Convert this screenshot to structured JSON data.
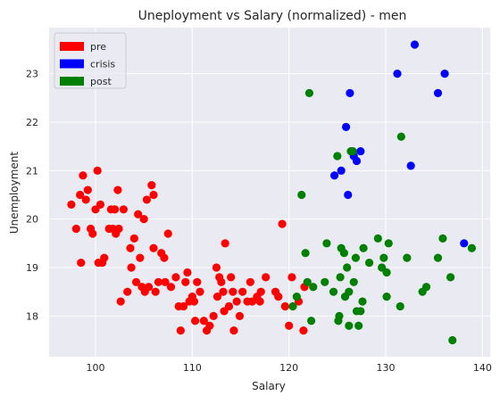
{
  "chart_data": {
    "type": "scatter",
    "title": "Uneployment vs Salary (normalized) - men",
    "xlabel": "Salary",
    "ylabel": "Unemployment",
    "xlim": [
      95.2,
      140.8
    ],
    "ylim": [
      17.16,
      23.95
    ],
    "xticks": [
      100,
      110,
      120,
      130,
      140
    ],
    "yticks": [
      18,
      19,
      20,
      21,
      22,
      23
    ],
    "grid": true,
    "legend_position": "top-left",
    "colors": {
      "background": "#eaeaf2",
      "grid": "#ffffff"
    },
    "series": [
      {
        "name": "pre",
        "color": "#ff0000",
        "points": [
          [
            97.5,
            20.3
          ],
          [
            98.0,
            19.8
          ],
          [
            98.4,
            20.5
          ],
          [
            98.5,
            19.1
          ],
          [
            98.7,
            20.9
          ],
          [
            99.0,
            20.4
          ],
          [
            99.2,
            20.6
          ],
          [
            99.5,
            19.8
          ],
          [
            99.7,
            19.7
          ],
          [
            100.0,
            20.2
          ],
          [
            100.2,
            21.0
          ],
          [
            100.3,
            19.1
          ],
          [
            100.5,
            20.3
          ],
          [
            100.7,
            19.1
          ],
          [
            100.9,
            19.2
          ],
          [
            101.4,
            19.8
          ],
          [
            101.6,
            20.2
          ],
          [
            101.8,
            19.8
          ],
          [
            102.0,
            20.2
          ],
          [
            102.1,
            19.7
          ],
          [
            102.3,
            20.6
          ],
          [
            102.4,
            19.8
          ],
          [
            102.6,
            18.3
          ],
          [
            102.9,
            20.2
          ],
          [
            103.3,
            18.5
          ],
          [
            103.6,
            19.4
          ],
          [
            103.7,
            19.0
          ],
          [
            104.0,
            19.6
          ],
          [
            104.2,
            18.7
          ],
          [
            104.4,
            20.1
          ],
          [
            104.6,
            19.2
          ],
          [
            104.8,
            18.6
          ],
          [
            105.0,
            20.0
          ],
          [
            105.1,
            18.5
          ],
          [
            105.3,
            20.4
          ],
          [
            105.5,
            18.6
          ],
          [
            105.8,
            20.7
          ],
          [
            106.0,
            20.5
          ],
          [
            106.0,
            19.4
          ],
          [
            106.2,
            18.5
          ],
          [
            106.5,
            18.7
          ],
          [
            106.8,
            19.3
          ],
          [
            107.1,
            19.2
          ],
          [
            107.2,
            18.7
          ],
          [
            107.5,
            19.7
          ],
          [
            107.8,
            18.6
          ],
          [
            108.3,
            18.8
          ],
          [
            108.6,
            18.2
          ],
          [
            108.8,
            17.7
          ],
          [
            109.1,
            18.2
          ],
          [
            109.3,
            18.7
          ],
          [
            109.5,
            18.9
          ],
          [
            109.7,
            18.3
          ],
          [
            110.0,
            18.4
          ],
          [
            110.2,
            18.3
          ],
          [
            110.3,
            17.9
          ],
          [
            110.5,
            18.7
          ],
          [
            110.8,
            18.5
          ],
          [
            111.2,
            17.9
          ],
          [
            111.5,
            17.7
          ],
          [
            111.8,
            17.8
          ],
          [
            112.2,
            18.0
          ],
          [
            112.5,
            19.0
          ],
          [
            112.6,
            18.4
          ],
          [
            112.8,
            18.8
          ],
          [
            113.0,
            18.7
          ],
          [
            113.2,
            18.5
          ],
          [
            113.3,
            18.1
          ],
          [
            113.4,
            19.5
          ],
          [
            113.8,
            18.2
          ],
          [
            114.0,
            18.8
          ],
          [
            114.2,
            18.5
          ],
          [
            114.3,
            17.7
          ],
          [
            114.6,
            18.3
          ],
          [
            114.9,
            18.0
          ],
          [
            115.2,
            18.5
          ],
          [
            115.7,
            18.3
          ],
          [
            116.0,
            18.7
          ],
          [
            116.2,
            18.3
          ],
          [
            116.7,
            18.4
          ],
          [
            117.0,
            18.3
          ],
          [
            117.1,
            18.5
          ],
          [
            117.6,
            18.8
          ],
          [
            118.6,
            18.5
          ],
          [
            118.9,
            18.4
          ],
          [
            119.3,
            19.9
          ],
          [
            119.6,
            18.2
          ],
          [
            120.0,
            17.8
          ],
          [
            120.3,
            18.8
          ],
          [
            121.0,
            18.3
          ],
          [
            121.5,
            17.7
          ],
          [
            121.6,
            18.6
          ]
        ]
      },
      {
        "name": "crisis",
        "color": "#0000ff",
        "points": [
          [
            124.7,
            20.9
          ],
          [
            125.4,
            21.0
          ],
          [
            125.9,
            21.9
          ],
          [
            126.1,
            20.5
          ],
          [
            126.3,
            22.6
          ],
          [
            126.7,
            21.3
          ],
          [
            127.0,
            21.2
          ],
          [
            127.4,
            21.4
          ],
          [
            131.2,
            23.0
          ],
          [
            132.6,
            21.1
          ],
          [
            133.0,
            23.6
          ],
          [
            135.4,
            22.6
          ],
          [
            136.1,
            23.0
          ],
          [
            138.1,
            19.5
          ]
        ]
      },
      {
        "name": "post",
        "color": "#008000",
        "points": [
          [
            120.4,
            18.2
          ],
          [
            120.8,
            18.4
          ],
          [
            121.3,
            20.5
          ],
          [
            121.7,
            19.3
          ],
          [
            121.9,
            18.7
          ],
          [
            122.1,
            22.6
          ],
          [
            122.3,
            17.9
          ],
          [
            122.5,
            18.6
          ],
          [
            123.7,
            18.7
          ],
          [
            123.9,
            19.5
          ],
          [
            124.6,
            18.5
          ],
          [
            125.0,
            21.3
          ],
          [
            125.1,
            17.9
          ],
          [
            125.2,
            18.0
          ],
          [
            125.3,
            18.8
          ],
          [
            125.4,
            19.4
          ],
          [
            125.7,
            19.3
          ],
          [
            125.8,
            18.4
          ],
          [
            126.0,
            19.0
          ],
          [
            126.2,
            18.5
          ],
          [
            126.2,
            17.8
          ],
          [
            126.4,
            21.4
          ],
          [
            126.6,
            21.4
          ],
          [
            126.7,
            18.7
          ],
          [
            126.9,
            19.2
          ],
          [
            127.0,
            18.1
          ],
          [
            127.2,
            17.8
          ],
          [
            127.4,
            18.1
          ],
          [
            127.6,
            18.3
          ],
          [
            127.7,
            19.4
          ],
          [
            128.3,
            19.1
          ],
          [
            129.2,
            19.6
          ],
          [
            129.6,
            19.0
          ],
          [
            129.8,
            19.2
          ],
          [
            130.1,
            18.9
          ],
          [
            130.1,
            18.4
          ],
          [
            130.3,
            19.5
          ],
          [
            131.5,
            18.2
          ],
          [
            131.6,
            21.7
          ],
          [
            132.2,
            19.2
          ],
          [
            133.8,
            18.5
          ],
          [
            134.2,
            18.6
          ],
          [
            135.4,
            19.2
          ],
          [
            135.9,
            19.6
          ],
          [
            136.7,
            18.8
          ],
          [
            136.9,
            17.5
          ],
          [
            138.9,
            19.4
          ]
        ]
      }
    ]
  }
}
